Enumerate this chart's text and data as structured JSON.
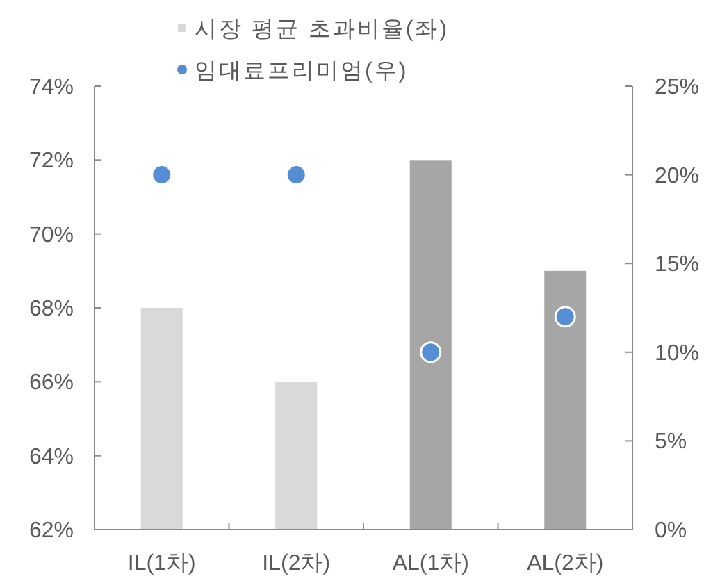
{
  "chart_data": {
    "type": "bar",
    "categories": [
      "IL(1차)",
      "IL(2차)",
      "AL(1차)",
      "AL(2차)"
    ],
    "series": [
      {
        "name": "시장 평균 초과비율(좌)",
        "color": "#d9d9d9",
        "colors": [
          "#d9d9d9",
          "#d9d9d9",
          "#a6a6a6",
          "#a6a6a6"
        ],
        "values": [
          68,
          66,
          72,
          69
        ]
      },
      {
        "name": "임대료프리미엄(우)",
        "type": "scatter",
        "axis": "y2",
        "color": "#558ed5",
        "marker": "circle",
        "values": [
          20,
          20,
          10,
          12
        ]
      }
    ],
    "ylim": [
      62,
      74
    ],
    "yticks": [
      {
        "value": 62,
        "label": "62%"
      },
      {
        "value": 64,
        "label": "64%"
      },
      {
        "value": 66,
        "label": "66%"
      },
      {
        "value": 68,
        "label": "68%"
      },
      {
        "value": 70,
        "label": "70%"
      },
      {
        "value": 72,
        "label": "72%"
      },
      {
        "value": 74,
        "label": "74%"
      }
    ],
    "y2lim": [
      0,
      25
    ],
    "y2ticks": [
      {
        "value": 0,
        "label": "0%"
      },
      {
        "value": 5,
        "label": "5%"
      },
      {
        "value": 10,
        "label": "10%"
      },
      {
        "value": 15,
        "label": "15%"
      },
      {
        "value": 20,
        "label": "20%"
      },
      {
        "value": 25,
        "label": "25%"
      }
    ],
    "legend": "top"
  }
}
